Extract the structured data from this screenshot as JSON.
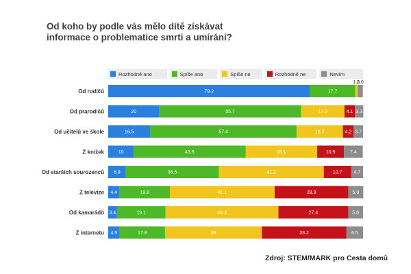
{
  "chart_data": {
    "type": "bar",
    "orientation": "horizontal",
    "stacked": true,
    "title_lines": [
      "Od koho by podle vás mělo dítě získávat",
      "informace o problematice smrti a umírání?"
    ],
    "categories": [
      "Od rodičů",
      "Od prarodičů",
      "Od učitelů ve škole",
      "Z knížek",
      "Od starších sourozenců",
      "Z televize",
      "Od kamarádů",
      "Z internetu"
    ],
    "series": [
      {
        "name": "Rozhodně ano",
        "color": "#2b7fdd",
        "values": [
          79.2,
          20,
          16.5,
          10,
          6.9,
          4.4,
          3.4,
          4.5
        ],
        "labels": [
          "79.2",
          "20",
          "16.5",
          "10",
          "6.9",
          "4.4",
          "3.4",
          "4.5"
        ]
      },
      {
        "name": "Spíše ano",
        "color": "#4db828",
        "values": [
          17.7,
          55.7,
          57.4,
          43.9,
          36.5,
          19.8,
          19.1,
          17.8
        ],
        "labels": [
          "17.7",
          "55.7",
          "57.4",
          "43.9",
          "36.5",
          "19.8",
          "19.1",
          "17.8"
        ]
      },
      {
        "name": "Spíše ne",
        "color": "#f2c51e",
        "values": [
          1.0,
          17.0,
          18.2,
          28.1,
          41.2,
          41.1,
          44.3,
          38
        ],
        "labels": [
          "1.0",
          "17.0",
          "18.2",
          "28.1",
          "41.2",
          "41.1",
          "44.3",
          "38"
        ]
      },
      {
        "name": "Rozhodně ne",
        "color": "#c4121b",
        "values": [
          0,
          4.1,
          4.2,
          10.5,
          10.7,
          28.9,
          27.4,
          33.2
        ],
        "labels": [
          "",
          "4.1",
          "4.2",
          "10.5",
          "10.7",
          "28.9",
          "27.4",
          "33.2"
        ]
      },
      {
        "name": "Nevím",
        "color": "#8c8c8c",
        "values": [
          2.0,
          3.3,
          3.7,
          7.4,
          4.7,
          5.9,
          5.8,
          6.5
        ],
        "labels": [
          "2.0",
          "3.3",
          "3.7",
          "7.4",
          "4.7",
          "5.9",
          "5.8",
          "6.5"
        ]
      }
    ],
    "xlim": [
      0,
      100
    ],
    "legend": "top",
    "grid": false,
    "source": "Zdroj: STEM/MARK pro Cesta domů"
  }
}
